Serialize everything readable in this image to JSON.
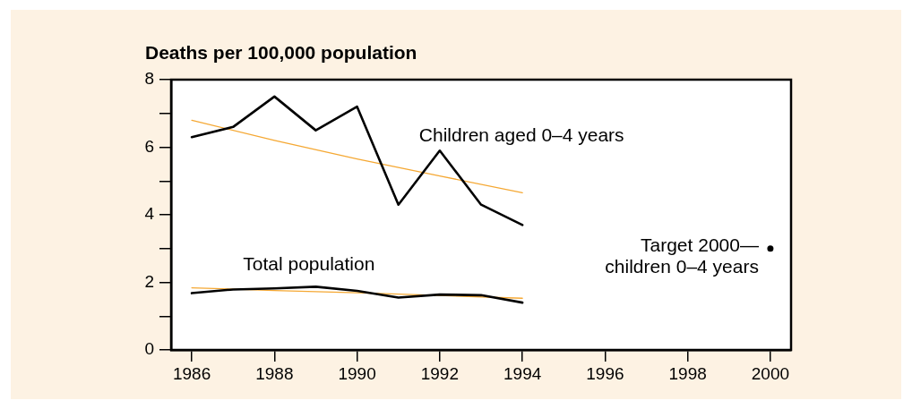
{
  "chart_data": {
    "type": "line",
    "ylabel": "Deaths per 100,000 population",
    "xlim": [
      1985.5,
      2000.5
    ],
    "xticks": [
      1986,
      1988,
      1990,
      1992,
      1994,
      1996,
      1998,
      2000
    ],
    "ylim": [
      0,
      8
    ],
    "yticks": [
      0,
      {
        "value": 1,
        "label": null
      },
      2,
      {
        "value": 3,
        "label": null
      },
      4,
      {
        "value": 5,
        "label": null
      },
      6,
      {
        "value": 7,
        "label": null
      },
      8
    ],
    "grid": false,
    "legend": false,
    "marker": "none",
    "line_style": "solid",
    "annotations": [
      {
        "text": "Target 2000—\nchildren 0–4 years",
        "x": 2000,
        "y": 3.0
      }
    ],
    "series": [
      {
        "name": "Children aged 0–4 years",
        "color": "#000000",
        "x": [
          1986,
          1987,
          1988,
          1989,
          1990,
          1991,
          1992,
          1993,
          1994
        ],
        "values": [
          6.3,
          6.6,
          7.5,
          6.5,
          7.2,
          4.3,
          5.9,
          4.3,
          3.7
        ]
      },
      {
        "color": "#f5a833",
        "x": [
          1986,
          1988,
          1990,
          1992,
          1994
        ],
        "values": [
          6.8,
          6.2,
          5.65,
          5.15,
          4.65
        ]
      },
      {
        "name": "Total population",
        "color": "#000000",
        "x": [
          1986,
          1987,
          1988,
          1989,
          1990,
          1991,
          1992,
          1993,
          1994
        ],
        "values": [
          1.68,
          1.79,
          1.82,
          1.87,
          1.75,
          1.55,
          1.64,
          1.62,
          1.4
        ]
      },
      {
        "color": "#f5a833",
        "x": [
          1986,
          1988,
          1990,
          1992,
          1994
        ],
        "values": [
          1.84,
          1.76,
          1.69,
          1.61,
          1.53
        ]
      },
      {
        "type": "scatter",
        "color": "#000000",
        "marker": "circle",
        "x": [
          2000
        ],
        "values": [
          3.0
        ]
      }
    ]
  }
}
